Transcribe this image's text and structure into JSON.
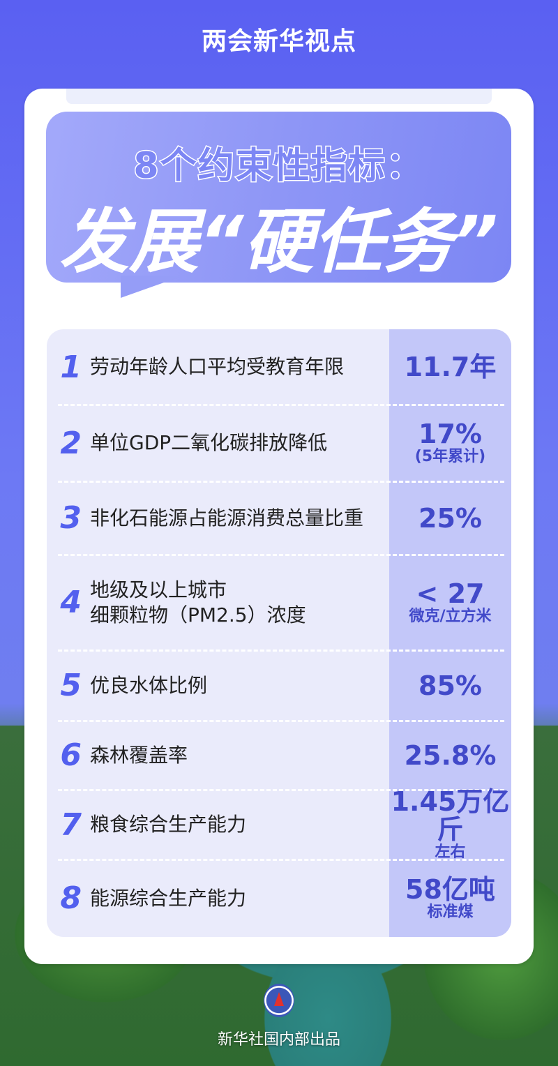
{
  "header": {
    "title": "两会新华视点"
  },
  "headline": {
    "line1": "8个约束性指标：",
    "line2": "发展“硬任务”"
  },
  "colors": {
    "accent": "#5360ee",
    "value_text": "#4149c9",
    "value_column": "#c3c7f9",
    "row_bg": "#eaebfb"
  },
  "indicators": [
    {
      "num": "1",
      "label": "劳动年龄人口平均受教育年限",
      "value": "11.7年",
      "sub": ""
    },
    {
      "num": "2",
      "label": "单位GDP二氧化碳排放降低",
      "value": "17%",
      "sub": "(5年累计)"
    },
    {
      "num": "3",
      "label": "非化石能源占能源消费总量比重",
      "value": "25%",
      "sub": ""
    },
    {
      "num": "4",
      "label": "地级及以上城市\n细颗粒物（PM2.5）浓度",
      "value": "< 27",
      "sub": "微克/立方米"
    },
    {
      "num": "5",
      "label": "优良水体比例",
      "value": "85%",
      "sub": ""
    },
    {
      "num": "6",
      "label": "森林覆盖率",
      "value": "25.8%",
      "sub": ""
    },
    {
      "num": "7",
      "label": "粮食综合生产能力",
      "value": "1.45万亿斤",
      "sub": "左右"
    },
    {
      "num": "8",
      "label": "能源综合生产能力",
      "value": "58亿吨",
      "sub": "标准煤"
    }
  ],
  "footer": {
    "logo_icon": "xinhua-logo",
    "credit": "新华社国内部出品"
  }
}
